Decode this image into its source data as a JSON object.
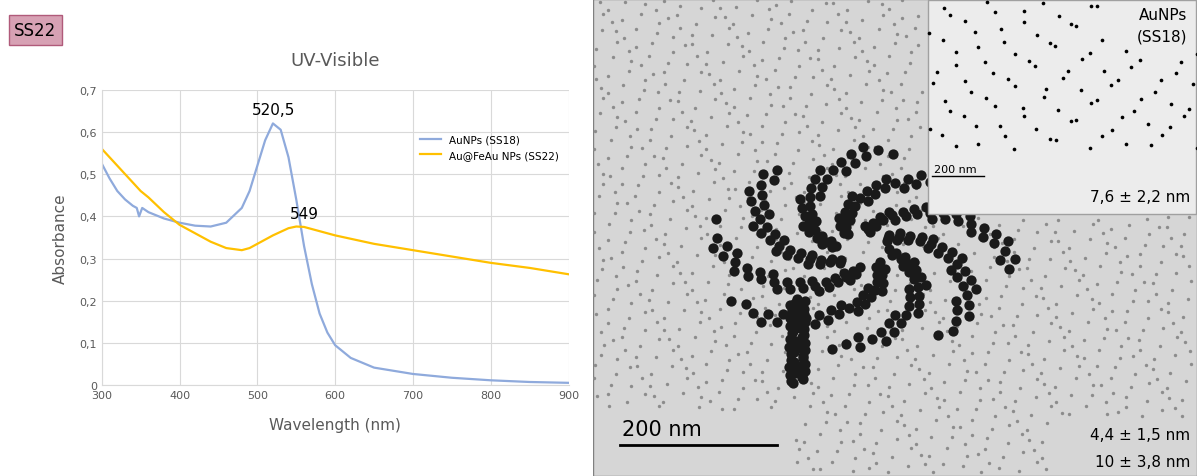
{
  "chart_data": {
    "type": "line",
    "panel_label": "SS22",
    "title": "UV-Visible",
    "x_label": "Wavelength (nm)",
    "y_label": "Absorbance",
    "xlim": [
      300,
      900
    ],
    "xticks": [
      300,
      400,
      500,
      600,
      700,
      800,
      900
    ],
    "ylim": [
      0,
      0.7
    ],
    "yticks": [
      0,
      {
        "value": 0.1,
        "label": "0,1"
      },
      {
        "value": 0.2,
        "label": "0,2"
      },
      {
        "value": 0.3,
        "label": "0,3"
      },
      {
        "value": 0.4,
        "label": "0,4"
      },
      {
        "value": 0.5,
        "label": "0,5"
      },
      {
        "value": 0.6,
        "label": "0,6"
      },
      {
        "value": 0.7,
        "label": "0,7"
      }
    ],
    "grid": true,
    "legend": "upper right",
    "series": [
      {
        "name": "AuNPs (SS18)",
        "color": "#8faadc",
        "x": [
          300,
          310,
          320,
          330,
          340,
          345,
          348,
          352,
          360,
          380,
          400,
          420,
          440,
          460,
          480,
          490,
          500,
          510,
          520,
          530,
          540,
          550,
          560,
          570,
          580,
          590,
          600,
          620,
          650,
          700,
          750,
          800,
          850,
          900
        ],
        "values": [
          0.525,
          0.49,
          0.46,
          0.44,
          0.425,
          0.42,
          0.4,
          0.42,
          0.41,
          0.395,
          0.385,
          0.378,
          0.376,
          0.385,
          0.42,
          0.46,
          0.52,
          0.58,
          0.62,
          0.605,
          0.54,
          0.44,
          0.33,
          0.24,
          0.17,
          0.125,
          0.095,
          0.065,
          0.042,
          0.027,
          0.018,
          0.012,
          0.008,
          0.006
        ]
      },
      {
        "name": "Au@FeAu NPs (SS22)",
        "color": "#ffc000",
        "x": [
          300,
          320,
          340,
          350,
          360,
          380,
          400,
          420,
          440,
          460,
          480,
          490,
          500,
          520,
          540,
          550,
          560,
          580,
          600,
          650,
          700,
          750,
          800,
          850,
          900
        ],
        "values": [
          0.56,
          0.52,
          0.48,
          0.46,
          0.445,
          0.41,
          0.38,
          0.36,
          0.34,
          0.325,
          0.32,
          0.325,
          0.335,
          0.355,
          0.372,
          0.376,
          0.375,
          0.365,
          0.355,
          0.335,
          0.32,
          0.305,
          0.29,
          0.278,
          0.263
        ]
      }
    ],
    "annotations": [
      {
        "text": "520,5",
        "x": 520.5,
        "y": 0.635
      },
      {
        "text": "549",
        "x": 560,
        "y": 0.39
      }
    ]
  },
  "tem_image": {
    "scale_bar": "200 nm",
    "sizes": [
      "4,4 ± 1,5 nm",
      "10 ± 3,8 nm"
    ],
    "inset": {
      "title_lines": [
        "AuNPs",
        "(SS18)"
      ],
      "scale_bar": "200 nm",
      "size": "7,6 ± 2,2 nm"
    }
  }
}
